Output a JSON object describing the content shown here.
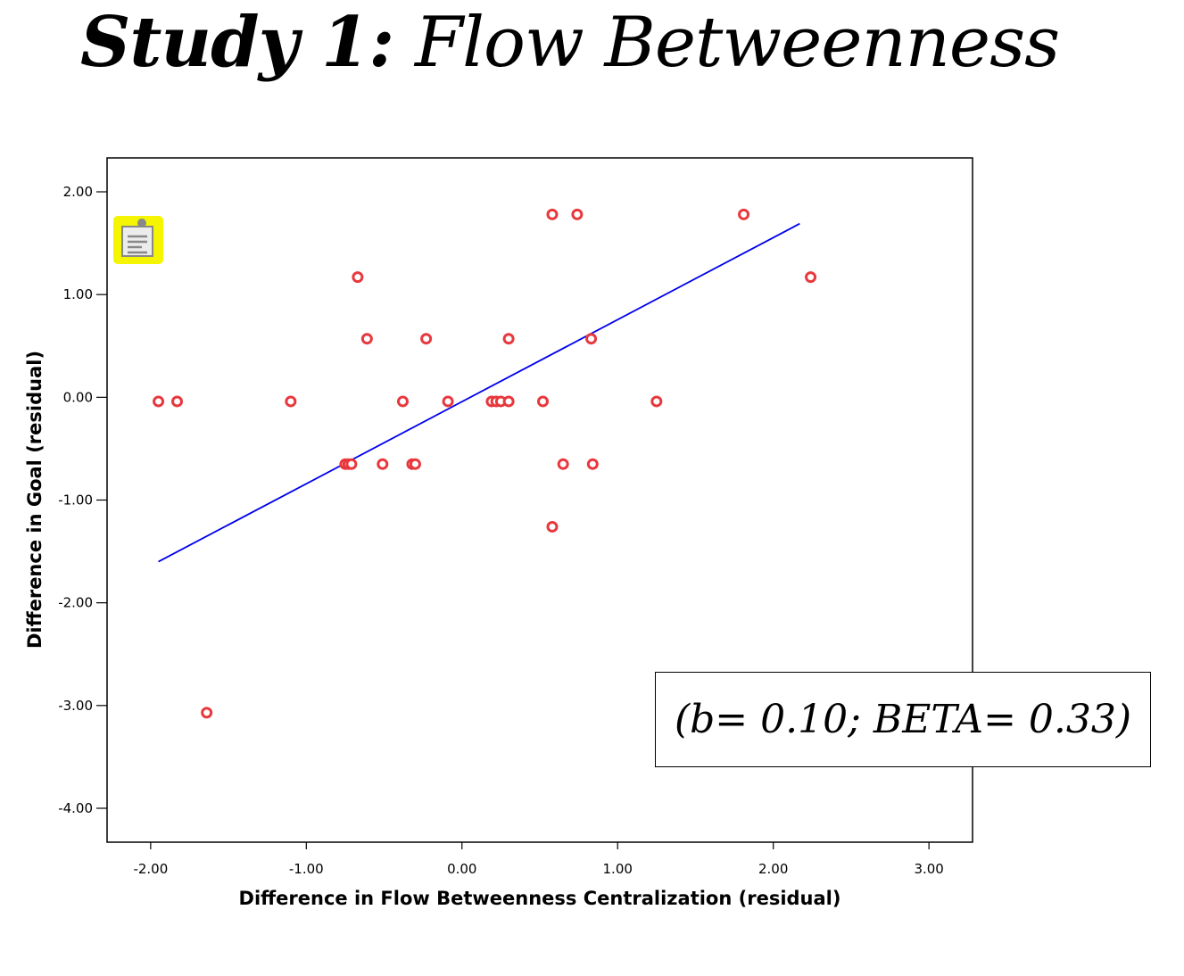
{
  "title": {
    "bold_part": "Study 1:",
    "italic_part": "Flow Betweenness"
  },
  "annotation": "(b= 0.10; BETA= 0.33)",
  "icon": "note-clipboard-icon",
  "colors": {
    "points": "#e8383d",
    "fit_line": "#0000ee",
    "axis": "#000000",
    "icon_bg": "#f5f500"
  },
  "chart_data": {
    "type": "scatter",
    "title": "",
    "xlabel": "Difference in Flow Betweenness Centralization (residual)",
    "ylabel": "Difference in Goal (residual)",
    "xlim": [
      -2.28,
      3.28
    ],
    "ylim": [
      -4.33,
      2.33
    ],
    "x_ticks": [
      -2,
      -1,
      0,
      1,
      2,
      3
    ],
    "x_tick_labels": [
      "-2.00",
      "-1.00",
      "0.00",
      "1.00",
      "2.00",
      "3.00"
    ],
    "y_ticks": [
      2,
      1,
      0,
      -1,
      -2,
      -3,
      -4
    ],
    "y_tick_labels": [
      "2.00",
      "1.00",
      "0.00",
      "-1.00",
      "-2.00",
      "-3.00",
      "-4.00"
    ],
    "points": [
      {
        "x": -1.95,
        "y": -0.04
      },
      {
        "x": -1.83,
        "y": -0.04
      },
      {
        "x": -1.1,
        "y": -0.04
      },
      {
        "x": -1.64,
        "y": -3.07
      },
      {
        "x": -0.67,
        "y": 1.17
      },
      {
        "x": -0.61,
        "y": 0.57
      },
      {
        "x": -0.23,
        "y": 0.57
      },
      {
        "x": -0.38,
        "y": -0.04
      },
      {
        "x": -0.09,
        "y": -0.04
      },
      {
        "x": -0.75,
        "y": -0.65
      },
      {
        "x": -0.73,
        "y": -0.65
      },
      {
        "x": -0.71,
        "y": -0.65
      },
      {
        "x": -0.51,
        "y": -0.65
      },
      {
        "x": -0.32,
        "y": -0.65
      },
      {
        "x": -0.3,
        "y": -0.65
      },
      {
        "x": 0.58,
        "y": 1.78
      },
      {
        "x": 0.74,
        "y": 1.78
      },
      {
        "x": 1.81,
        "y": 1.78
      },
      {
        "x": 2.24,
        "y": 1.17
      },
      {
        "x": 0.3,
        "y": 0.57
      },
      {
        "x": 0.83,
        "y": 0.57
      },
      {
        "x": 0.19,
        "y": -0.04
      },
      {
        "x": 0.22,
        "y": -0.04
      },
      {
        "x": 0.25,
        "y": -0.04
      },
      {
        "x": 0.3,
        "y": -0.04
      },
      {
        "x": 0.52,
        "y": -0.04
      },
      {
        "x": 1.25,
        "y": -0.04
      },
      {
        "x": 0.65,
        "y": -0.65
      },
      {
        "x": 0.84,
        "y": -0.65
      },
      {
        "x": 0.58,
        "y": -1.26
      }
    ],
    "fit_line": {
      "x": [
        -1.95,
        2.17
      ],
      "y": [
        -1.6,
        1.69
      ]
    }
  }
}
